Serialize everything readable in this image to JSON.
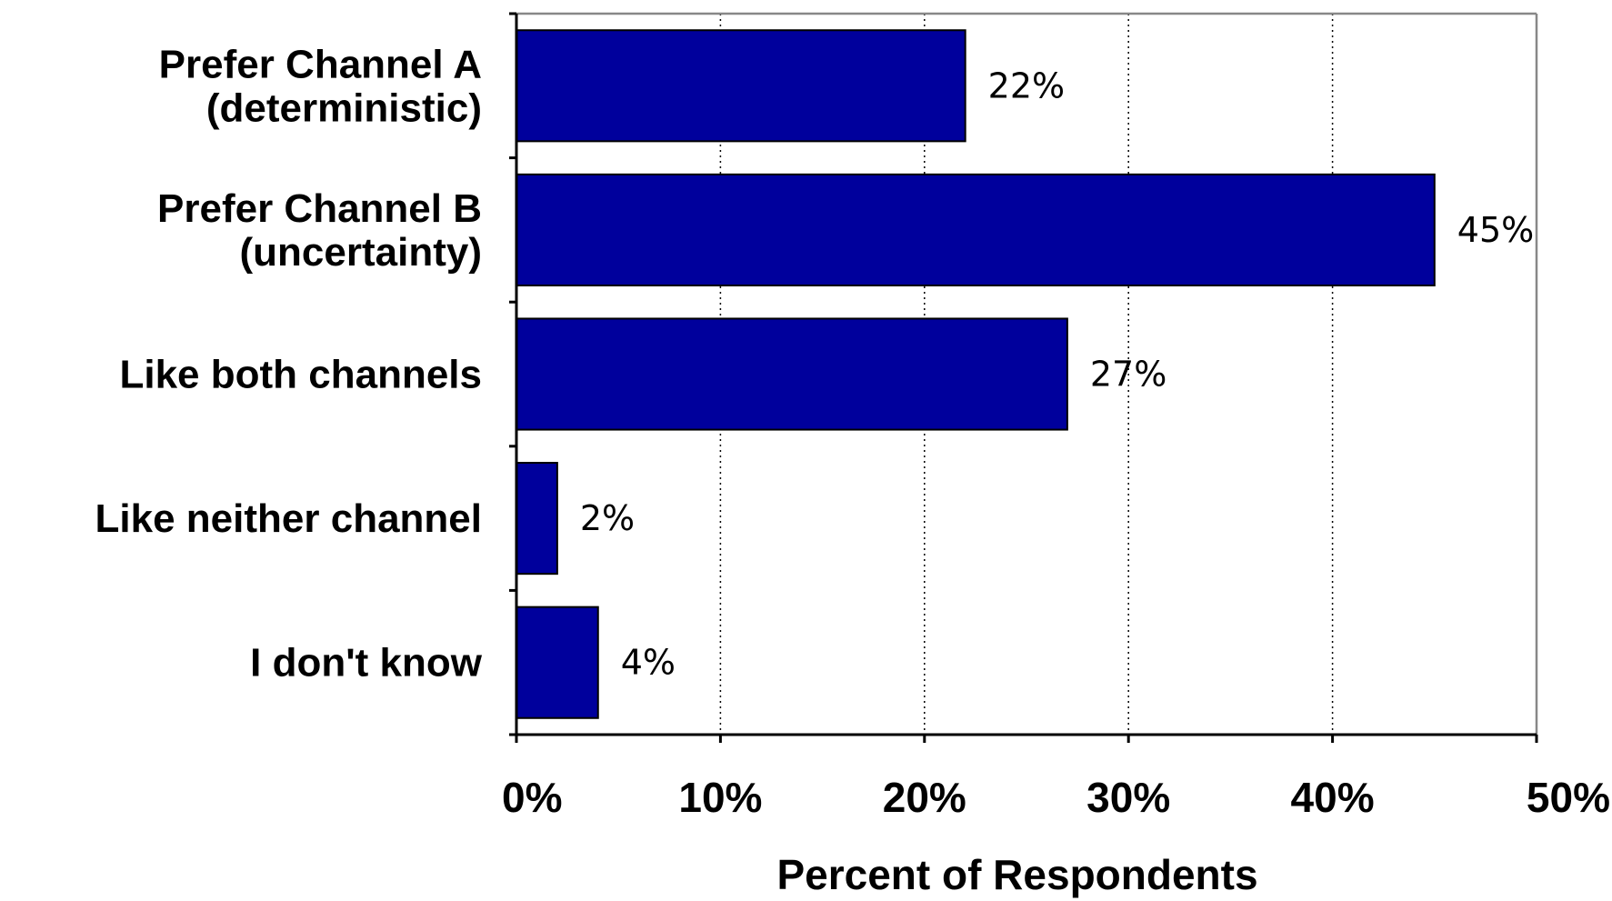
{
  "chart_data": {
    "type": "bar",
    "orientation": "horizontal",
    "categories": [
      [
        "Prefer Channel A",
        "(deterministic)"
      ],
      [
        "Prefer Channel B",
        "(uncertainty)"
      ],
      [
        "Like both channels"
      ],
      [
        "Like neither channel"
      ],
      [
        "I don't know"
      ]
    ],
    "values": [
      22,
      45,
      27,
      2,
      4
    ],
    "value_labels": [
      "22%",
      "45%",
      "27%",
      "2%",
      "4%"
    ],
    "xlabel": "Percent of Respondents",
    "xlim": [
      0,
      50
    ],
    "xticks": [
      0,
      10,
      20,
      30,
      40,
      50
    ],
    "xtick_labels": [
      "0%",
      "10%",
      "20%",
      "30%",
      "40%",
      "50%"
    ],
    "grid": "vertical dotted",
    "bar_color": "#00009C"
  }
}
